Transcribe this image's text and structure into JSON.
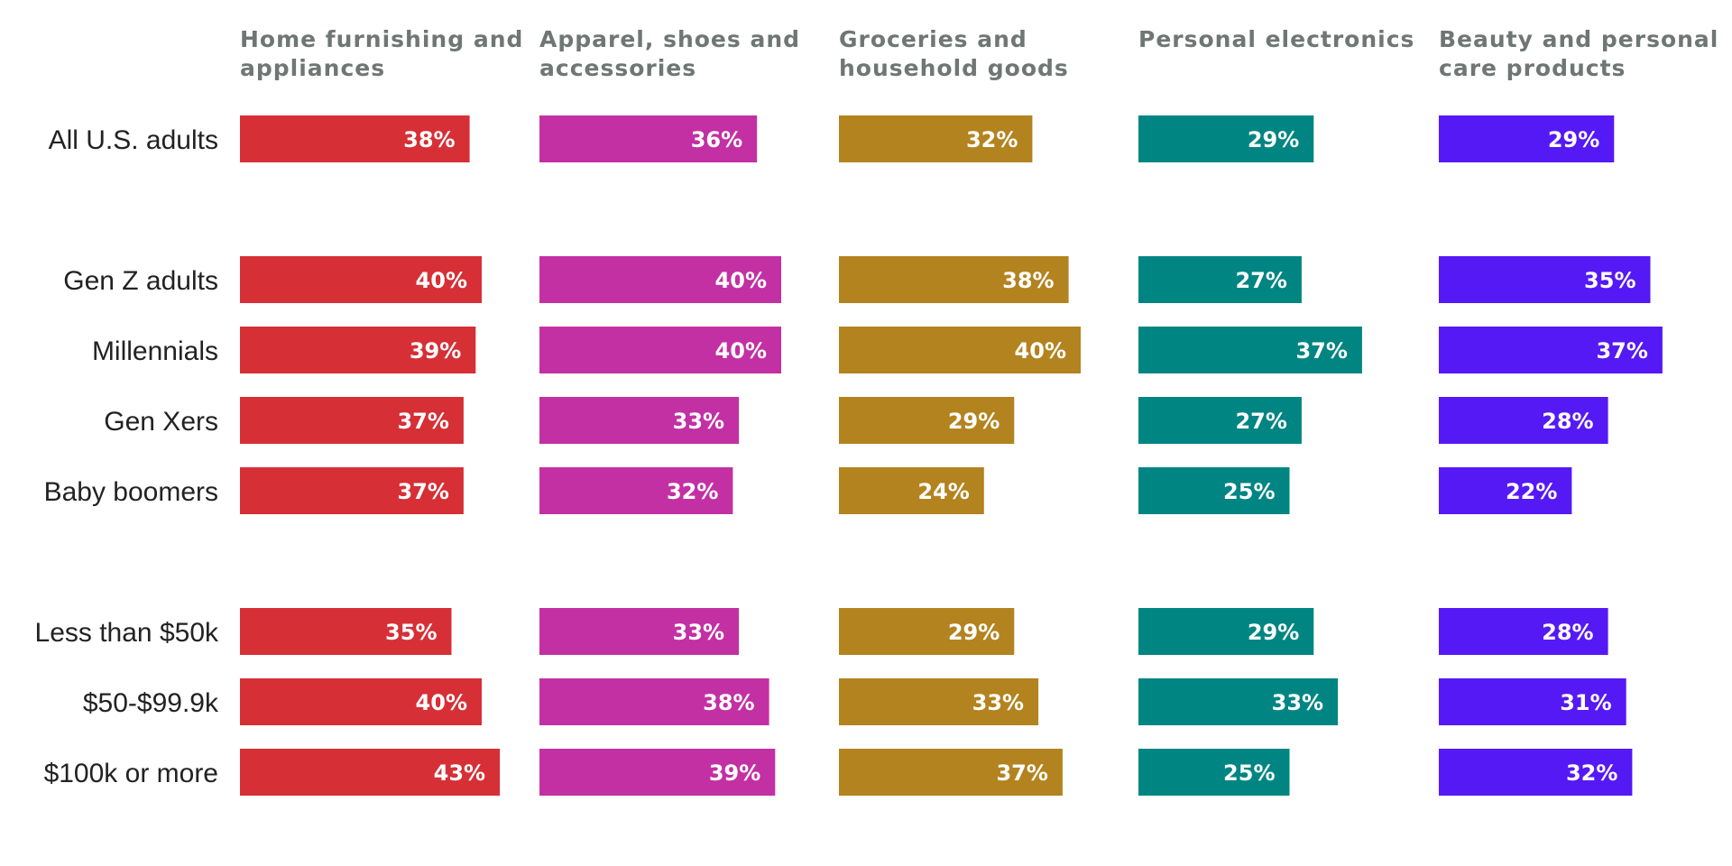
{
  "chart_data": {
    "type": "bar",
    "orientation": "horizontal",
    "layout": "small-multiples",
    "categories": [
      "All U.S. adults",
      "Gen Z adults",
      "Millennials",
      "Gen Xers",
      "Baby boomers",
      "Less than $50k",
      "$50-$99.9k",
      "$100k or more"
    ],
    "category_groups": [
      [
        0
      ],
      [
        1,
        2,
        3,
        4
      ],
      [
        5,
        6,
        7
      ]
    ],
    "unit": "%",
    "series": [
      {
        "name": "Home furnishing and appliances",
        "title_lines": [
          "Home furnishing and",
          "appliances"
        ],
        "color": "#d62f36",
        "values": [
          38,
          40,
          39,
          37,
          37,
          35,
          40,
          43
        ]
      },
      {
        "name": "Apparel, shoes and accessories",
        "title_lines": [
          "Apparel, shoes and",
          "accessories"
        ],
        "color": "#c330a3",
        "values": [
          36,
          40,
          40,
          33,
          32,
          33,
          38,
          39
        ]
      },
      {
        "name": "Groceries and household goods",
        "title_lines": [
          "Groceries and",
          "household goods"
        ],
        "color": "#b3831f",
        "values": [
          32,
          38,
          40,
          29,
          24,
          29,
          33,
          37
        ]
      },
      {
        "name": "Personal electronics",
        "title_lines": [
          "Personal electronics"
        ],
        "color": "#008583",
        "values": [
          29,
          27,
          37,
          27,
          25,
          29,
          33,
          25
        ]
      },
      {
        "name": "Beauty and personal care products",
        "title_lines": [
          "Beauty and personal",
          "care products"
        ],
        "color": "#5519f5",
        "values": [
          29,
          35,
          37,
          28,
          22,
          28,
          31,
          32
        ]
      }
    ],
    "xlim": [
      0,
      100
    ],
    "grid": false,
    "legend": "none"
  }
}
